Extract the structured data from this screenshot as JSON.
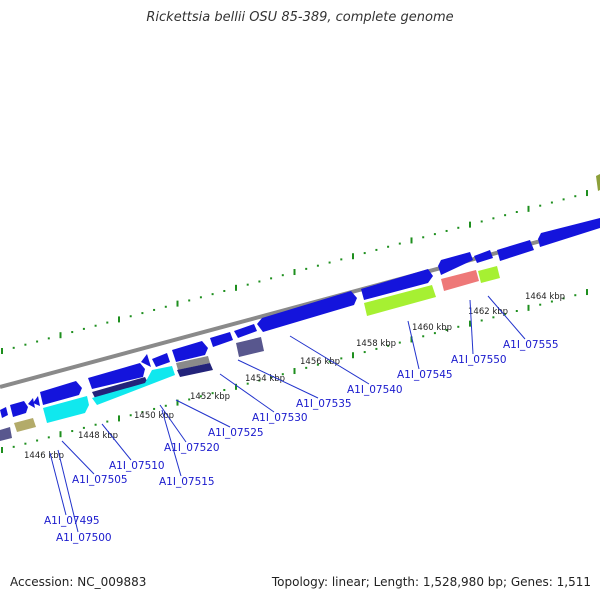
{
  "title": "Rickettsia bellii OSU 85-389, complete genome",
  "footer": {
    "accession": "Accession: NC_009883",
    "summary": "Topology: linear; Length: 1,528,980 bp; Genes: 1,511"
  },
  "colors": {
    "backbone": "#8a8a8a",
    "gene_blue": "#1414dc",
    "cyan": "#10e8ee",
    "navy": "#23237a",
    "lime": "#a6f032",
    "salmon": "#ee7878",
    "khaki": "#b3ab6a",
    "slate": "#58578e",
    "tick_green": "#1e8f1e",
    "olive": "#8da03a",
    "label_blue": "#1a1acd",
    "leader_blue": "#2233cc"
  },
  "kbp_ticks": [
    "1446 kbp",
    "1448 kbp",
    "1450 kbp",
    "1452 kbp",
    "1454 kbp",
    "1456 kbp",
    "1458 kbp",
    "1460 kbp",
    "1462 kbp",
    "1464 kbp"
  ],
  "gene_labels": [
    "A1I_07495",
    "A1I_07500",
    "A1I_07505",
    "A1I_07510",
    "A1I_07515",
    "A1I_07520",
    "A1I_07525",
    "A1I_07530",
    "A1I_07535",
    "A1I_07540",
    "A1I_07545",
    "A1I_07550",
    "A1I_07555"
  ]
}
